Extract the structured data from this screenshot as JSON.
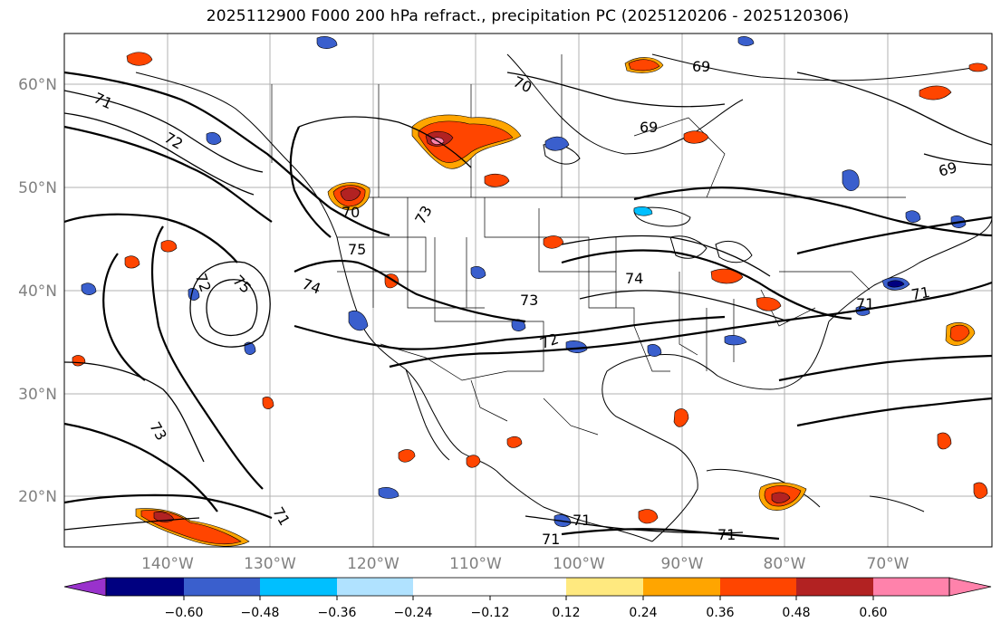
{
  "title": "2025112900 F000 200 hPa refract., precipitation PC (2025120206 - 2025120306)",
  "latitude_labels": [
    "60°N",
    "50°N",
    "40°N",
    "30°N",
    "20°N"
  ],
  "longitude_labels": [
    "140°W",
    "130°W",
    "120°W",
    "110°W",
    "100°W",
    "90°W",
    "80°W",
    "70°W"
  ],
  "colorbar": {
    "colors": [
      "#9932cc",
      "#000080",
      "#3a5fcd",
      "#00bfff",
      "#b0e2ff",
      "#ffffff",
      "#ffe97f",
      "#ffa500",
      "#ff4500",
      "#b22222",
      "#ff82ab"
    ],
    "ticks": [
      "−0.60",
      "−0.48",
      "−0.36",
      "−0.24",
      "−0.12",
      "0.12",
      "0.24",
      "0.36",
      "0.48",
      "0.60"
    ]
  },
  "contour_labels": [
    "69",
    "70",
    "71",
    "72",
    "73",
    "74",
    "75",
    "69",
    "69",
    "71",
    "71",
    "74",
    "73",
    "72",
    "71",
    "71",
    "71",
    "72",
    "75",
    "73",
    "71",
    "70"
  ]
}
